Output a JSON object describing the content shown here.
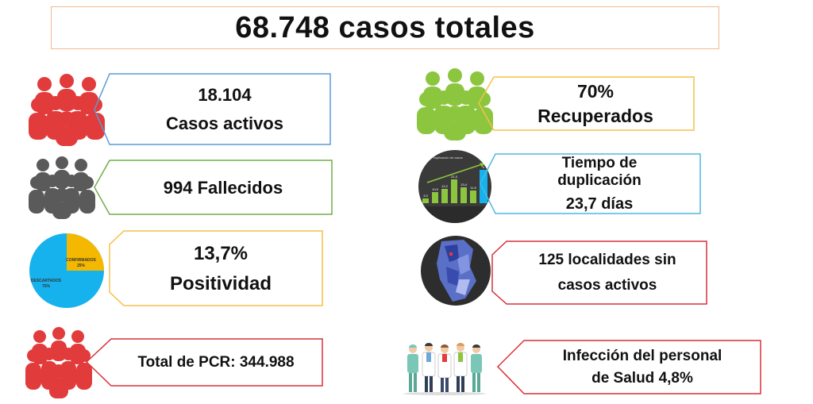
{
  "title": "68.748 casos totales",
  "cards": {
    "activos": {
      "line1": "18.104",
      "line2": "Casos activos",
      "color": "#5b9bd5"
    },
    "fallecidos": {
      "line1": "994 Fallecidos",
      "color": "#70ad47"
    },
    "positividad": {
      "line1": "13,7%",
      "line2": "Positividad",
      "color": "#f5c04a"
    },
    "pcr": {
      "line1": "Total de PCR: 344.988",
      "color": "#d9313a"
    },
    "recuperados": {
      "line1": "70%",
      "line2": "Recuperados",
      "color": "#f5c04a"
    },
    "duplicacion": {
      "line1": "Tiempo de",
      "line2": "duplicación",
      "line3": "23,7 días",
      "color": "#4fb8e0"
    },
    "localidades": {
      "line1": "125 localidades sin",
      "line2": "casos activos",
      "color": "#d9313a"
    },
    "salud": {
      "line1": "Infección del personal",
      "line2": "de Salud 4,8%",
      "color": "#d9313a"
    }
  },
  "pie": {
    "segments": [
      {
        "label": "CONFIRMADOS",
        "value": "25%",
        "fraction": 0.25,
        "color": "#f5b800"
      },
      {
        "label": "DESCARTADOS",
        "value": "75%",
        "fraction": 0.75,
        "color": "#16b2ee"
      }
    ]
  },
  "thumb_chart": {
    "title": "de duplicación de casos",
    "values": [
      "3,3",
      "10,5",
      "12,2",
      "21,3",
      "13,4",
      "11,5",
      "4"
    ]
  },
  "icon_colors": {
    "red": "#e23b3b",
    "gray": "#5a5a5a",
    "green": "#8cc63f"
  }
}
